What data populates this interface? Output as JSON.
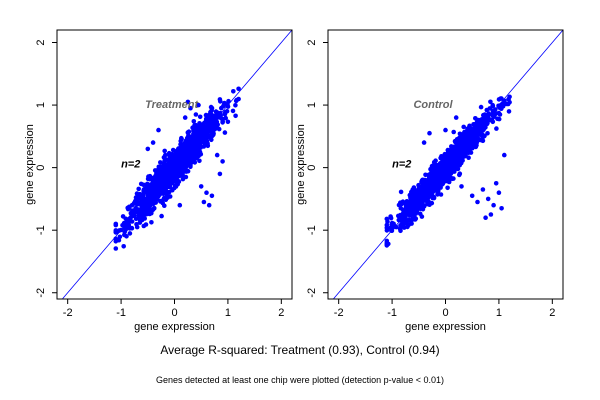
{
  "figure": {
    "caption_main": "Average R-squared: Treatment (0.93), Control (0.94)",
    "caption_sub": "Genes detected at least one chip were plotted (detection p-value < 0.01)"
  },
  "colors": {
    "points": "#0000ff",
    "identity_line": "#0000ff",
    "annotation": "#666666",
    "axes": "#000000"
  },
  "chart_data": [
    {
      "type": "scatter",
      "title": "",
      "xlabel": "gene expression",
      "ylabel": "gene expression",
      "xlim": [
        -2.2,
        2.2
      ],
      "ylim": [
        -2.1,
        2.2
      ],
      "xticks": [
        -2,
        -1,
        0,
        1,
        2
      ],
      "yticks": [
        -2,
        -1,
        0,
        1,
        2
      ],
      "grid": false,
      "identity_line": true,
      "annotations": [
        {
          "text": "Treatment",
          "x": -0.55,
          "y": 0.95,
          "style": "bold-italic-grey"
        },
        {
          "text": "n=2",
          "x": -1.0,
          "y": 0.0,
          "style": "bold-italic-black"
        }
      ],
      "series": [
        {
          "marker_color": "#0000ff",
          "cloud": {
            "x_range": [
              -1.1,
              1.2
            ],
            "correlation": 0.96,
            "sd_x": 0.42,
            "mean": 0.0,
            "n_points": 1400
          },
          "outliers": [
            [
              0.2,
              0.8
            ],
            [
              0.3,
              0.95
            ],
            [
              -0.3,
              0.6
            ],
            [
              0.5,
              -0.3
            ],
            [
              0.6,
              -0.4
            ],
            [
              0.7,
              -0.45
            ],
            [
              0.1,
              -0.6
            ],
            [
              -0.2,
              -0.5
            ],
            [
              0.4,
              0.85
            ],
            [
              0.8,
              0.2
            ],
            [
              0.9,
              0.1
            ],
            [
              -0.4,
              0.4
            ],
            [
              0.55,
              -0.55
            ],
            [
              0.65,
              -0.6
            ],
            [
              0.45,
              1.0
            ],
            [
              0.85,
              -0.1
            ],
            [
              -0.5,
              0.3
            ],
            [
              0.25,
              1.05
            ]
          ]
        }
      ]
    },
    {
      "type": "scatter",
      "title": "",
      "xlabel": "gene expression",
      "ylabel": "gene expression",
      "xlim": [
        -2.2,
        2.2
      ],
      "ylim": [
        -2.1,
        2.2
      ],
      "xticks": [
        -2,
        -1,
        0,
        1,
        2
      ],
      "yticks": [
        -2,
        -1,
        0,
        1,
        2
      ],
      "grid": false,
      "identity_line": true,
      "annotations": [
        {
          "text": "Control",
          "x": -0.6,
          "y": 0.95,
          "style": "bold-italic-grey"
        },
        {
          "text": "n=2",
          "x": -1.0,
          "y": 0.0,
          "style": "bold-italic-black"
        }
      ],
      "series": [
        {
          "marker_color": "#0000ff",
          "cloud": {
            "x_range": [
              -1.1,
              1.2
            ],
            "correlation": 0.97,
            "sd_x": 0.42,
            "mean": 0.0,
            "n_points": 1400
          },
          "outliers": [
            [
              0.7,
              -0.35
            ],
            [
              0.8,
              -0.5
            ],
            [
              0.9,
              -0.6
            ],
            [
              0.6,
              -0.55
            ],
            [
              1.0,
              -0.4
            ],
            [
              0.3,
              -0.3
            ],
            [
              -0.4,
              0.4
            ],
            [
              -0.3,
              0.55
            ],
            [
              0.2,
              0.8
            ],
            [
              1.1,
              0.2
            ],
            [
              0.85,
              -0.75
            ],
            [
              0.95,
              -0.25
            ],
            [
              0.5,
              -0.45
            ],
            [
              0.0,
              0.6
            ],
            [
              1.05,
              -0.65
            ],
            [
              0.75,
              -0.8
            ]
          ]
        }
      ]
    }
  ]
}
